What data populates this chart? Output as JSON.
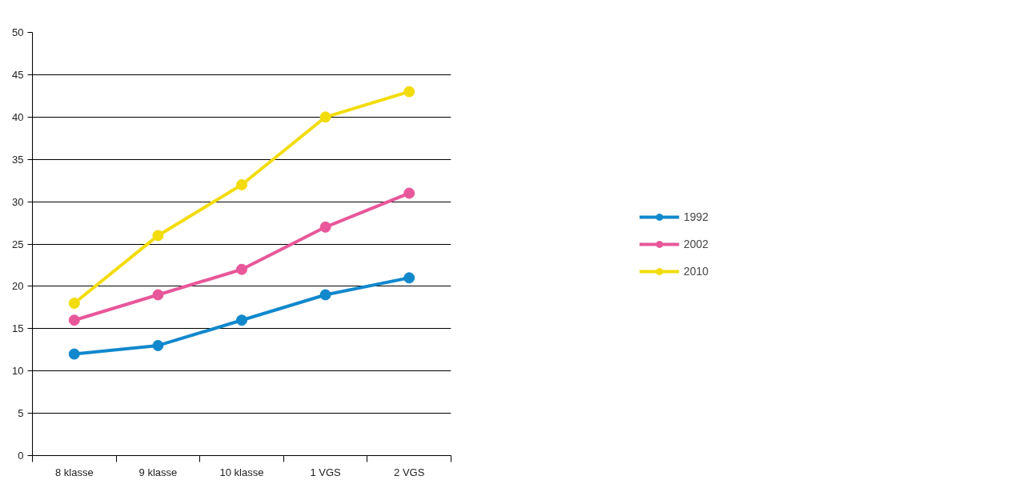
{
  "chart_data": {
    "type": "line",
    "categories": [
      "8 klasse",
      "9 klasse",
      "10 klasse",
      "1 VGS",
      "2 VGS"
    ],
    "series": [
      {
        "name": "1992",
        "color": "#1188cc",
        "values": [
          12,
          13,
          16,
          19,
          21
        ]
      },
      {
        "name": "2002",
        "color": "#e8579a",
        "values": [
          16,
          19,
          22,
          27,
          31
        ]
      },
      {
        "name": "2010",
        "color": "#f2dc0c",
        "values": [
          18,
          26,
          32,
          40,
          43
        ]
      }
    ],
    "ylim": [
      0,
      50
    ],
    "yticks": [
      0,
      5,
      10,
      15,
      20,
      25,
      30,
      35,
      40,
      45,
      50
    ],
    "grid": "y",
    "legend": "right",
    "marker": "circle",
    "line_style": "solid"
  }
}
